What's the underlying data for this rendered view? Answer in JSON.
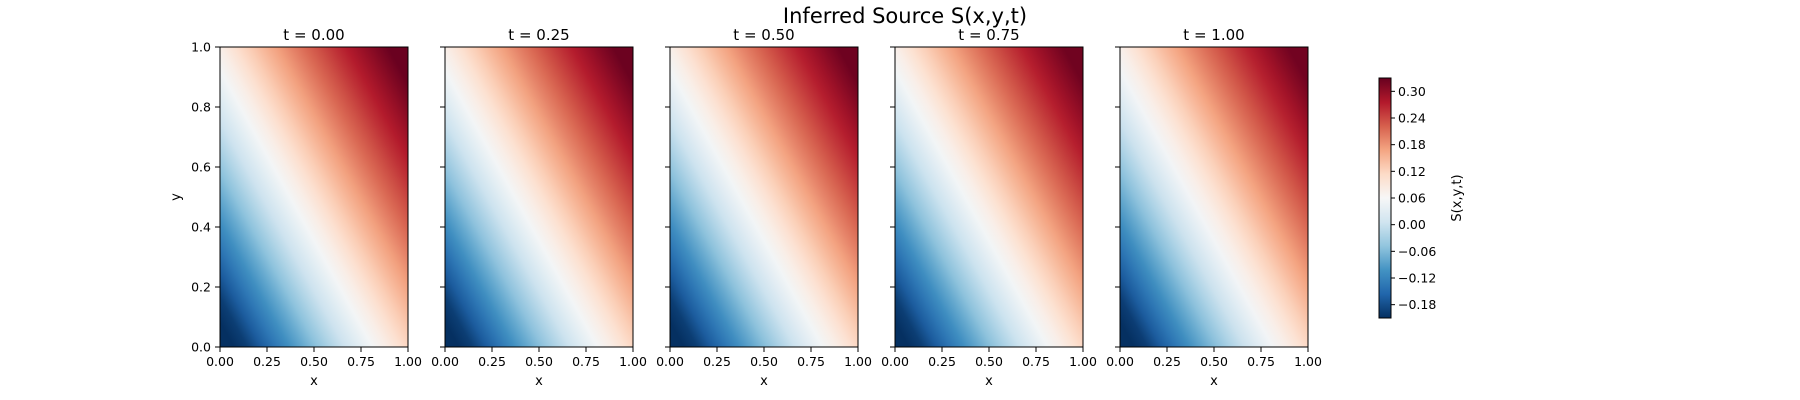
{
  "figure": {
    "title": "Inferred Source S(x,y,t)"
  },
  "chart_data": {
    "type": "heatmap",
    "colormap": "RdBu_r",
    "colormap_stops": [
      "#053061",
      "#2166ac",
      "#4393c3",
      "#92c5de",
      "#d1e5f0",
      "#f7f7f7",
      "#fddbc7",
      "#f4a582",
      "#d6604d",
      "#b2182b",
      "#67001f"
    ],
    "value_range": [
      -0.21,
      0.33
    ],
    "xlim": [
      0,
      1
    ],
    "ylim": [
      0,
      1
    ],
    "x_ticks": [
      "0.00",
      "0.25",
      "0.50",
      "0.75",
      "1.00"
    ],
    "y_ticks": [
      "0.0",
      "0.2",
      "0.4",
      "0.6",
      "0.8",
      "1.0"
    ],
    "xlabel": "x",
    "ylabel": "y",
    "panels": [
      {
        "title": "t = 0.00",
        "t": 0.0
      },
      {
        "title": "t = 0.25",
        "t": 0.25
      },
      {
        "title": "t = 0.50",
        "t": 0.5
      },
      {
        "title": "t = 0.75",
        "t": 0.75
      },
      {
        "title": "t = 1.00",
        "t": 1.0
      }
    ],
    "colorbar": {
      "label": "S(x,y,t)",
      "ticks": [
        "−0.18",
        "−0.12",
        "−0.06",
        "0.00",
        "0.06",
        "0.12",
        "0.18",
        "0.24",
        "0.30"
      ],
      "tick_values": [
        -0.18,
        -0.12,
        -0.06,
        0.0,
        0.06,
        0.12,
        0.18,
        0.24,
        0.3
      ]
    },
    "grid": false
  }
}
